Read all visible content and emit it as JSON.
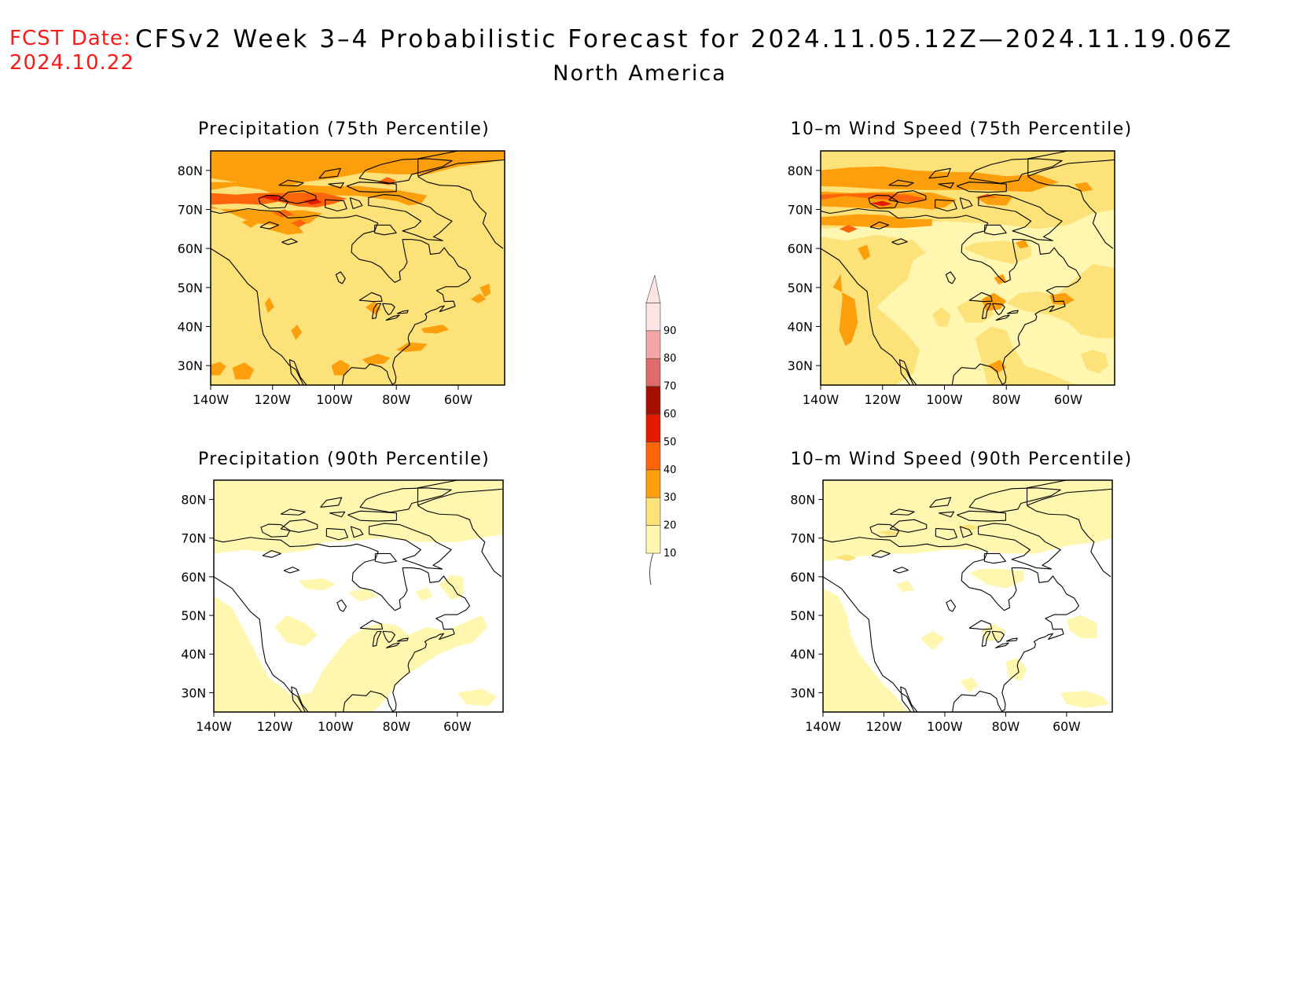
{
  "header": {
    "fcst_label": "FCST Date:",
    "fcst_date": "2024.10.22",
    "title": "CFSv2 Week 3–4 Probabilistic Forecast for 2024.11.05.12Z—2024.11.19.06Z",
    "subtitle": "North America"
  },
  "axes": {
    "lat_labels": [
      "80N",
      "70N",
      "60N",
      "50N",
      "40N",
      "30N"
    ],
    "lon_labels": [
      "140W",
      "120W",
      "100W",
      "80W",
      "60W"
    ]
  },
  "panels": [
    {
      "id": "precip-75",
      "title": "Precipitation (75th Percentile)",
      "shading": "high"
    },
    {
      "id": "wind-75",
      "title": "10–m Wind Speed (75th Percentile)",
      "shading": "high-wind"
    },
    {
      "id": "precip-90",
      "title": "Precipitation (90th Percentile)",
      "shading": "low"
    },
    {
      "id": "wind-90",
      "title": "10–m Wind Speed (90th Percentile)",
      "shading": "low-wind"
    }
  ],
  "colorbar": {
    "levels": [
      "10",
      "20",
      "30",
      "40",
      "50",
      "60",
      "70",
      "80",
      "90"
    ],
    "colors": [
      "#fff7b0",
      "#fde27a",
      "#fd9e0d",
      "#fc650a",
      "#e31a00",
      "#a50f00",
      "#de6a6a",
      "#f4a5a5",
      "#fde4e4"
    ]
  },
  "colors": {
    "title_red": "#ff1a1a",
    "coast": "#000000",
    "bg": "#ffffff"
  }
}
